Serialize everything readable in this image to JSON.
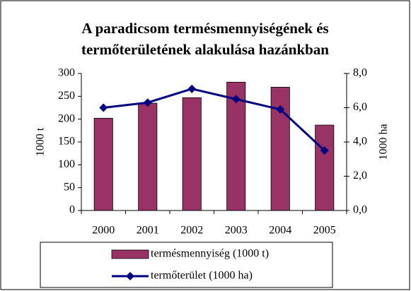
{
  "chart_data": {
    "type": "bar-line",
    "title": [
      "A paradicsom termésmennyiségének és",
      "termőterületének alakulása hazánkban"
    ],
    "categories": [
      "2000",
      "2001",
      "2002",
      "2003",
      "2004",
      "2005"
    ],
    "series": [
      {
        "name": "termésmennyiség (1000 t)",
        "type": "bar",
        "color": "#993366",
        "values": [
          202,
          235,
          247,
          281,
          270,
          187
        ]
      },
      {
        "name": "termőterület (1000 ha)",
        "type": "line",
        "axis": "y2",
        "color": "#000080",
        "values": [
          6.0,
          6.3,
          7.1,
          6.5,
          5.9,
          3.5
        ]
      }
    ],
    "ylabel": "1000 t",
    "y2label": "1000 ha",
    "ylim": [
      0,
      300
    ],
    "yticks": [
      0,
      50,
      100,
      150,
      200,
      250,
      300
    ],
    "y2lim": [
      0,
      8
    ],
    "y2ticks": [
      {
        "value": 0,
        "label": "0,0"
      },
      {
        "value": 2,
        "label": "2,0"
      },
      {
        "value": 4,
        "label": "4,0"
      },
      {
        "value": 6,
        "label": "6,0"
      },
      {
        "value": 8,
        "label": "8,0"
      }
    ],
    "grid": false,
    "legend": "bottom"
  }
}
